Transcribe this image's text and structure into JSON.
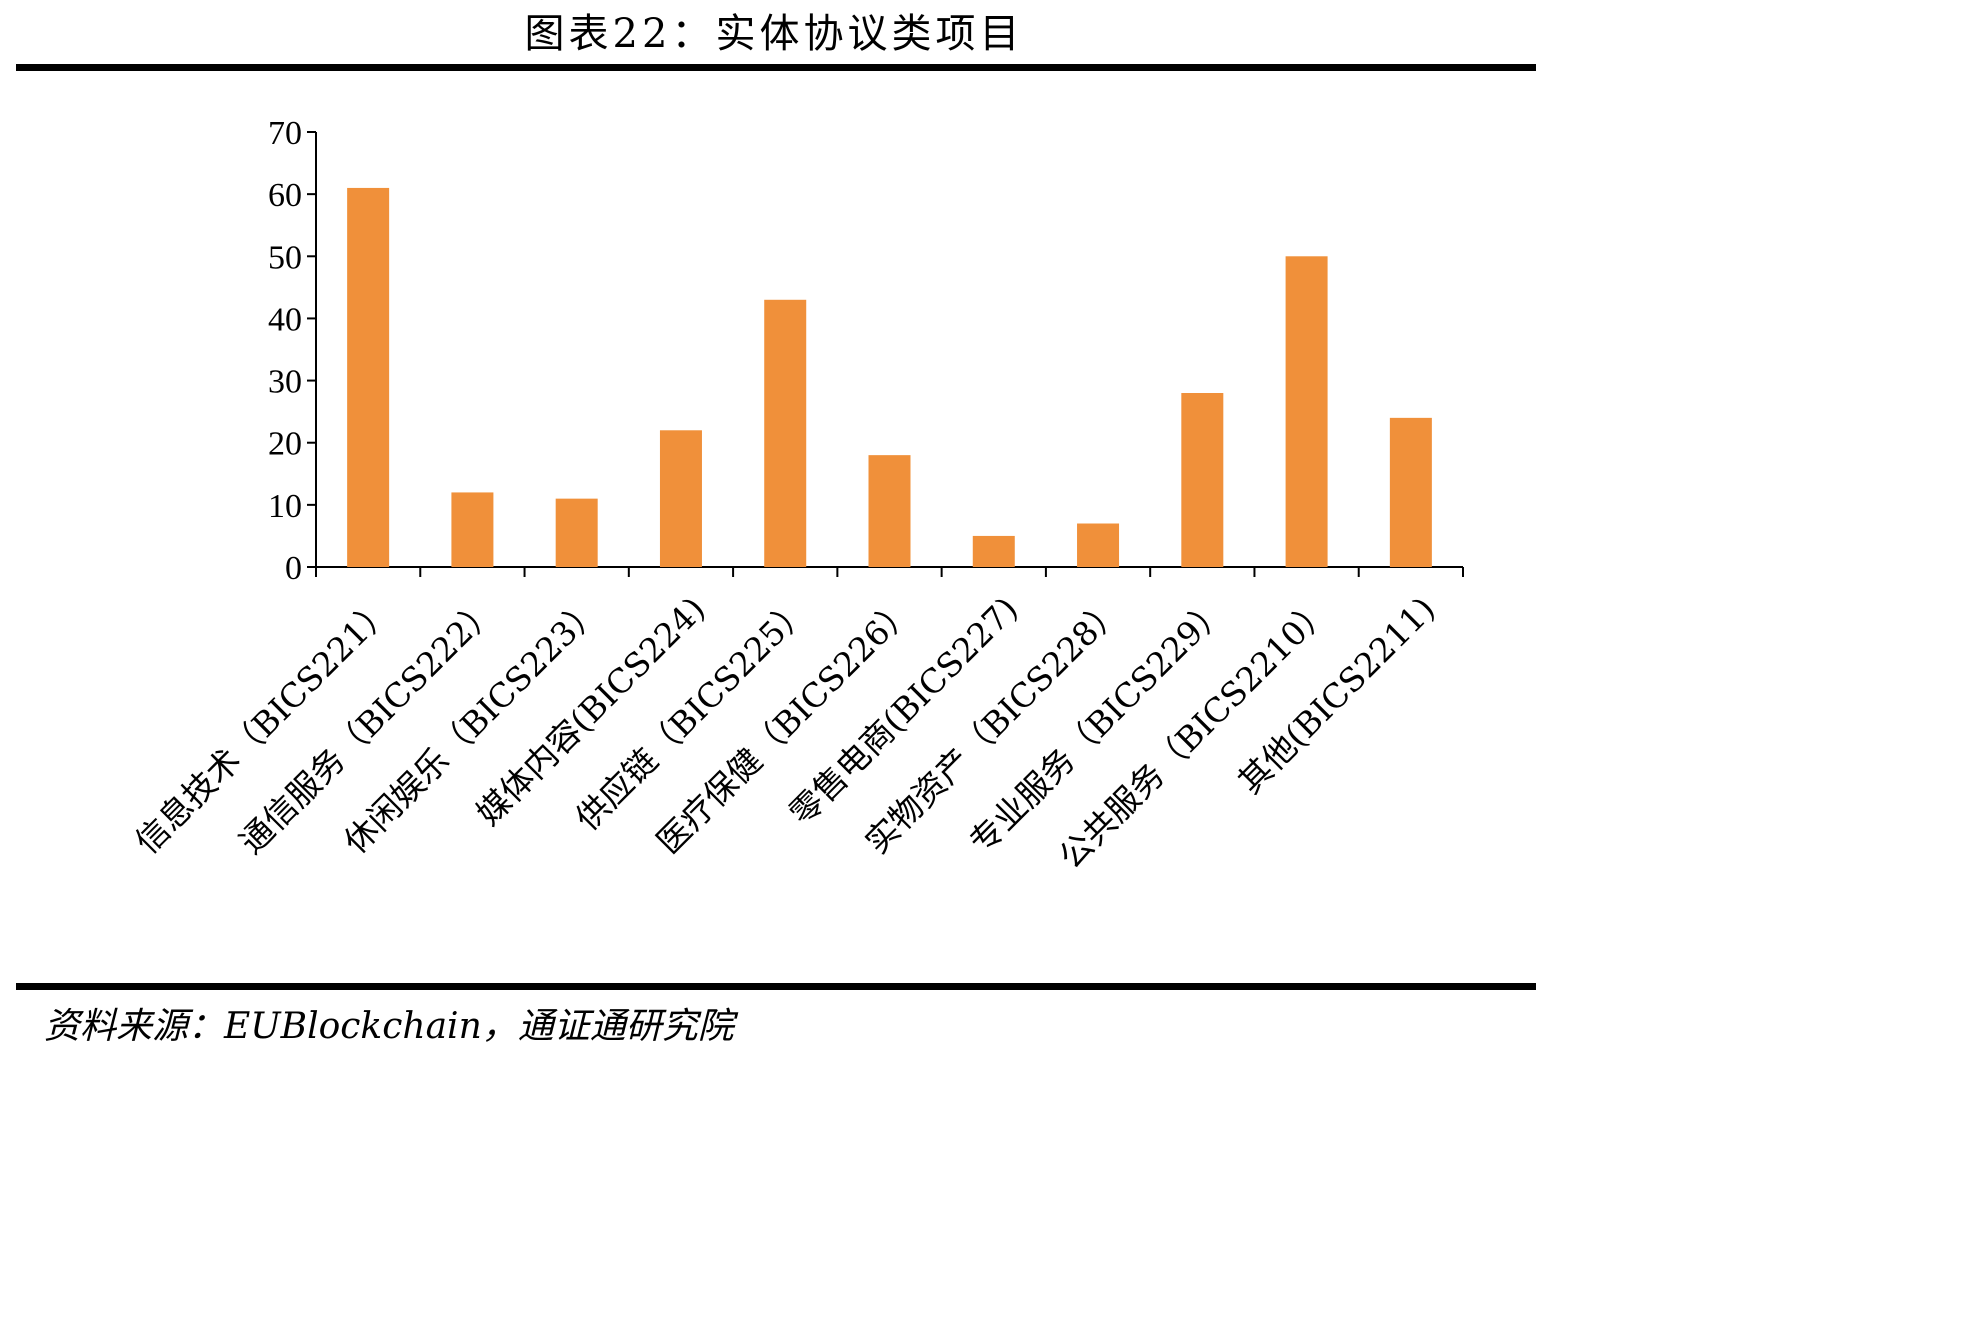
{
  "header": {
    "title": "图表22：实体协议类项目"
  },
  "footer": {
    "source": "资料来源：EUBlockchain，通证通研究院"
  },
  "colors": {
    "bar": "#F0903A",
    "axis": "#000000"
  },
  "chart_data": {
    "type": "bar",
    "categories": [
      "信息技术（BICS221）",
      "通信服务（BICS222）",
      "休闲娱乐（BICS223）",
      "媒体内容(BICS224)",
      "供应链（BICS225）",
      "医疗保健（BICS226）",
      "零售电商(BICS227)",
      "实物资产（BICS228）",
      "专业服务（BICS229）",
      "公共服务（BICS2210）",
      "其他(BICS2211)"
    ],
    "values": [
      61,
      12,
      11,
      22,
      43,
      18,
      5,
      7,
      28,
      50,
      24
    ],
    "ylim": [
      0,
      70
    ],
    "yticks": [
      "0",
      "10",
      "20",
      "30",
      "40",
      "50",
      "60",
      "70"
    ],
    "grid": false,
    "legend": "none"
  }
}
